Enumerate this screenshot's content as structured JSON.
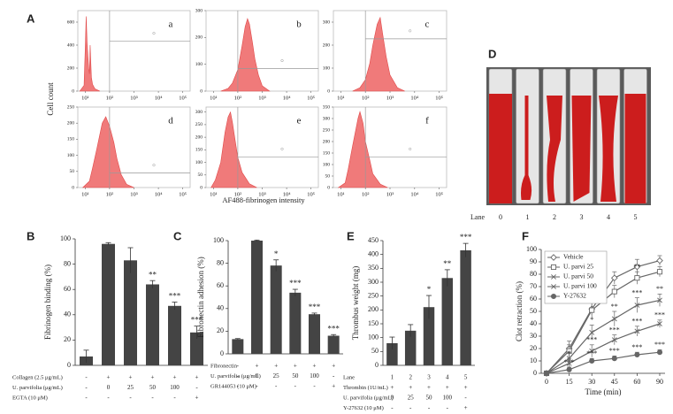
{
  "chart_data": [
    {
      "type": "area",
      "panel": "A",
      "title": "a",
      "ylabel": "Cell count",
      "xlabel": "AF488-fibrinogen intensity",
      "log_x": true,
      "color": "#f07a7a",
      "x": [
        6,
        9,
        10,
        11,
        12,
        13,
        14,
        15,
        16,
        18,
        20,
        25,
        40
      ],
      "values": [
        0,
        50,
        350,
        650,
        420,
        300,
        200,
        150,
        400,
        120,
        60,
        20,
        0
      ],
      "xlim": [
        5,
        200000
      ],
      "xticks": [
        {
          "value": 10,
          "label": "10¹"
        },
        {
          "value": 100,
          "label": "10²"
        },
        {
          "value": 1000,
          "label": "10³"
        },
        {
          "value": 10000,
          "label": "10⁴"
        },
        {
          "value": 100000,
          "label": "10⁵"
        }
      ],
      "ylim": [
        0,
        700
      ],
      "yticks": [
        0,
        200,
        400,
        600
      ]
    },
    {
      "type": "area",
      "title": "b",
      "log_x": true,
      "color": "#f07a7a",
      "x": [
        20,
        40,
        60,
        100,
        150,
        200,
        250,
        300,
        400,
        500,
        700,
        1000,
        2000
      ],
      "values": [
        0,
        10,
        30,
        80,
        170,
        240,
        270,
        250,
        180,
        120,
        60,
        20,
        0
      ],
      "xlim": [
        5,
        200000
      ],
      "xticks": [
        {
          "value": 10,
          "label": "10¹"
        },
        {
          "value": 100,
          "label": "10²"
        },
        {
          "value": 1000,
          "label": "10³"
        },
        {
          "value": 10000,
          "label": "10⁴"
        },
        {
          "value": 100000,
          "label": "10⁵"
        }
      ],
      "ylim": [
        0,
        300
      ],
      "yticks": [
        0,
        100,
        200,
        300
      ]
    },
    {
      "type": "area",
      "title": "c",
      "log_x": true,
      "color": "#f07a7a",
      "x": [
        30,
        60,
        100,
        150,
        200,
        300,
        400,
        500,
        700,
        1000,
        2000,
        4000
      ],
      "values": [
        0,
        15,
        50,
        120,
        200,
        290,
        320,
        250,
        150,
        70,
        15,
        0
      ],
      "xlim": [
        5,
        200000
      ],
      "xticks": [
        {
          "value": 10,
          "label": "10¹"
        },
        {
          "value": 100,
          "label": "10²"
        },
        {
          "value": 1000,
          "label": "10³"
        },
        {
          "value": 10000,
          "label": "10⁴"
        },
        {
          "value": 100000,
          "label": "10⁵"
        }
      ],
      "ylim": [
        0,
        350
      ],
      "yticks": [
        0,
        100,
        200,
        300
      ]
    },
    {
      "type": "area",
      "title": "d",
      "log_x": true,
      "color": "#f07a7a",
      "x": [
        8,
        15,
        20,
        30,
        50,
        70,
        100,
        150,
        200,
        300,
        500,
        1000
      ],
      "values": [
        0,
        20,
        60,
        120,
        200,
        220,
        190,
        140,
        90,
        40,
        10,
        0
      ],
      "xlim": [
        5,
        200000
      ],
      "xticks": [
        {
          "value": 10,
          "label": "10¹"
        },
        {
          "value": 100,
          "label": "10²"
        },
        {
          "value": 1000,
          "label": "10³"
        },
        {
          "value": 10000,
          "label": "10⁴"
        },
        {
          "value": 100000,
          "label": "10⁵"
        }
      ],
      "ylim": [
        0,
        250
      ],
      "yticks": [
        0,
        50,
        100,
        150,
        200,
        250
      ]
    },
    {
      "type": "area",
      "title": "e",
      "log_x": true,
      "color": "#f07a7a",
      "x": [
        8,
        12,
        20,
        30,
        40,
        50,
        60,
        80,
        100,
        150,
        300,
        600
      ],
      "values": [
        0,
        30,
        100,
        220,
        280,
        300,
        260,
        180,
        120,
        60,
        15,
        0
      ],
      "xlim": [
        5,
        200000
      ],
      "xticks": [
        {
          "value": 10,
          "label": "10¹"
        },
        {
          "value": 100,
          "label": "10²"
        },
        {
          "value": 1000,
          "label": "10³"
        },
        {
          "value": 10000,
          "label": "10⁴"
        },
        {
          "value": 100000,
          "label": "10⁵"
        }
      ],
      "ylim": [
        0,
        320
      ],
      "yticks": [
        0,
        50,
        100,
        150,
        200,
        250,
        300
      ]
    },
    {
      "type": "area",
      "title": "f",
      "log_x": true,
      "color": "#f07a7a",
      "x": [
        8,
        15,
        20,
        30,
        50,
        60,
        80,
        100,
        150,
        200,
        400,
        800
      ],
      "values": [
        0,
        20,
        80,
        180,
        300,
        330,
        280,
        200,
        120,
        60,
        15,
        0
      ],
      "xlim": [
        5,
        200000
      ],
      "xticks": [
        {
          "value": 10,
          "label": "10¹"
        },
        {
          "value": 100,
          "label": "10²"
        },
        {
          "value": 1000,
          "label": "10³"
        },
        {
          "value": 10000,
          "label": "10⁴"
        },
        {
          "value": 100000,
          "label": "10⁵"
        }
      ],
      "ylim": [
        0,
        350
      ],
      "yticks": [
        0,
        50,
        100,
        150,
        200,
        250,
        300,
        350
      ]
    },
    {
      "type": "image",
      "panel": "D",
      "lane_label": "Lane",
      "lanes": [
        0,
        1,
        2,
        3,
        4,
        5
      ]
    },
    {
      "type": "bar",
      "panel": "B",
      "ylabel": "Fibrinogen binding (%)",
      "color": "#444444",
      "values": [
        7,
        96,
        83,
        64,
        47,
        26
      ],
      "errors": [
        5,
        1,
        10,
        3,
        3,
        5
      ],
      "significance": [
        null,
        null,
        null,
        "**",
        "***",
        "***"
      ],
      "ylim": [
        0,
        100
      ],
      "yticks": [
        0,
        20,
        40,
        60,
        80,
        100
      ],
      "table": [
        {
          "label": "Collagen (2.5 μg/mL)",
          "cells": [
            "-",
            "+",
            "+",
            "+",
            "+",
            "+"
          ]
        },
        {
          "label": "U. parvifolia (μg/mL)",
          "cells": [
            "-",
            "0",
            "25",
            "50",
            "100",
            "-"
          ]
        },
        {
          "label": "EGTA (10 μM)",
          "cells": [
            "-",
            "-",
            "-",
            "-",
            "-",
            "+"
          ]
        }
      ]
    },
    {
      "type": "bar",
      "panel": "C",
      "ylabel": "Fibronectin adhesion (%)",
      "color": "#444444",
      "values": [
        13,
        100,
        78,
        54,
        35,
        16
      ],
      "errors": [
        0.5,
        0.5,
        5,
        3,
        1,
        1
      ],
      "significance": [
        null,
        null,
        "*",
        "***",
        "***",
        "***"
      ],
      "ylim": [
        0,
        100
      ],
      "yticks": [
        0,
        20,
        40,
        60,
        80,
        100
      ],
      "table": [
        {
          "label": "Fibronectin",
          "cells": [
            "-",
            "+",
            "+",
            "+",
            "+",
            "+"
          ]
        },
        {
          "label": "U. parvifolia (μg/mL)",
          "cells": [
            "-",
            "0",
            "25",
            "50",
            "100",
            "-"
          ]
        },
        {
          "label": "GR144053 (10 μM)",
          "cells": [
            "-",
            "-",
            "-",
            "-",
            "-",
            "+"
          ]
        }
      ]
    },
    {
      "type": "bar",
      "panel": "E",
      "ylabel": "Thrombus weight (mg)",
      "color": "#444444",
      "values": [
        80,
        125,
        210,
        315,
        415
      ],
      "errors": [
        22,
        22,
        42,
        30,
        25
      ],
      "significance": [
        null,
        null,
        "*",
        "**",
        "***"
      ],
      "ylim": [
        0,
        450
      ],
      "yticks": [
        0,
        50,
        100,
        150,
        200,
        250,
        300,
        350,
        400,
        450
      ],
      "table": [
        {
          "label": "Lane",
          "cells": [
            "1",
            "2",
            "3",
            "4",
            "5"
          ]
        },
        {
          "label": "Thrombin (1U/mL)",
          "cells": [
            "+",
            "+",
            "+",
            "+",
            "+"
          ]
        },
        {
          "label": "U. parvifolia (μg/mL)",
          "cells": [
            "0",
            "25",
            "50",
            "100",
            "-"
          ]
        },
        {
          "label": "Y-27632 (10 μM)",
          "cells": [
            "-",
            "-",
            "-",
            "-",
            "+"
          ]
        }
      ]
    },
    {
      "type": "line",
      "panel": "F",
      "xlabel": "Time (min)",
      "ylabel": "Clot retraction (%)",
      "legend": "upper left",
      "categories": [
        "0",
        "15",
        "30",
        "45",
        "60",
        "90"
      ],
      "ylim": [
        0,
        100
      ],
      "yticks": [
        0,
        10,
        20,
        30,
        40,
        50,
        60,
        70,
        80,
        90,
        100
      ],
      "series": [
        {
          "name": "Vehicle",
          "color": "#666666",
          "marker": "diamond",
          "values": [
            0,
            20,
            52,
            77,
            86,
            91
          ],
          "errors": [
            0,
            6,
            5,
            5,
            6,
            4
          ],
          "significance": [
            null,
            null,
            null,
            null,
            null,
            null
          ]
        },
        {
          "name": "U. parvi 25",
          "color": "#666666",
          "marker": "square",
          "values": [
            0,
            18,
            51,
            66,
            77,
            82
          ],
          "errors": [
            0,
            5,
            6,
            5,
            5,
            4
          ],
          "significance": [
            null,
            null,
            null,
            null,
            "**",
            null
          ]
        },
        {
          "name": "U. parvi 50",
          "color": "#666666",
          "marker": "x",
          "values": [
            0,
            12,
            33,
            44,
            55,
            59
          ],
          "errors": [
            0,
            5,
            6,
            6,
            6,
            5
          ],
          "significance": [
            null,
            null,
            "*",
            "**",
            "***",
            "**"
          ]
        },
        {
          "name": "U. parvi 100",
          "color": "#666666",
          "marker": "x",
          "values": [
            0,
            8,
            18,
            27,
            34,
            40
          ],
          "errors": [
            0,
            4,
            5,
            4,
            4,
            3
          ],
          "significance": [
            null,
            "*",
            "***",
            "***",
            "***",
            "***"
          ]
        },
        {
          "name": "Y-27632",
          "color": "#666666",
          "marker": "circle",
          "values": [
            0,
            3,
            10,
            12,
            15,
            17
          ],
          "errors": [
            0,
            2,
            2,
            2,
            2,
            2
          ],
          "significance": [
            null,
            "***",
            "***",
            "***",
            "***",
            "***"
          ]
        }
      ]
    }
  ]
}
